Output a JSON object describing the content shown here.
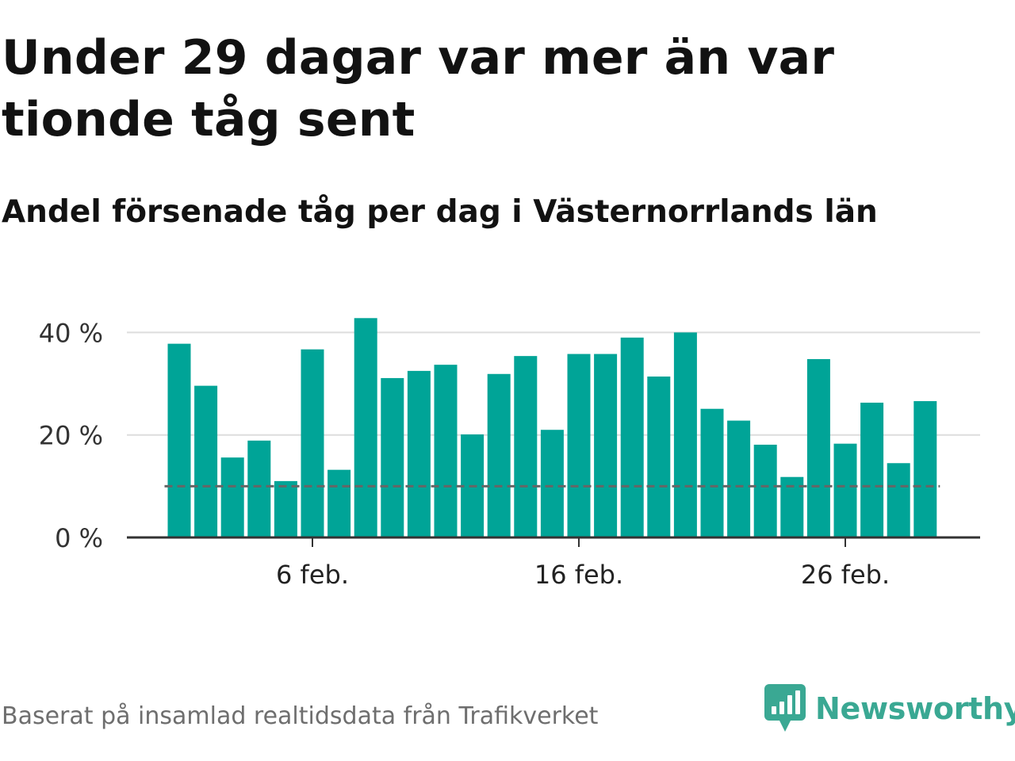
{
  "title": "Under 29 dagar var mer än var tionde tåg sent",
  "subtitle": "Andel försenade tåg per dag i Västernorrlands län",
  "source": "Baserat på insamlad realtidsdata från Trafikverket",
  "brand": {
    "name": "Newsworthy",
    "icon": "newsworthy-logo-icon",
    "color": "#3aa893"
  },
  "colors": {
    "bar": "#00a497",
    "reference_line": "#666666",
    "grid": "#dddddd",
    "axis": "#333333"
  },
  "chart_data": {
    "type": "bar",
    "x": [
      "1 feb.",
      "2 feb.",
      "3 feb.",
      "4 feb.",
      "5 feb.",
      "6 feb.",
      "7 feb.",
      "8 feb.",
      "9 feb.",
      "10 feb.",
      "11 feb.",
      "12 feb.",
      "13 feb.",
      "14 feb.",
      "15 feb.",
      "16 feb.",
      "17 feb.",
      "18 feb.",
      "19 feb.",
      "20 feb.",
      "21 feb.",
      "22 feb.",
      "23 feb.",
      "24 feb.",
      "25 feb.",
      "26 feb.",
      "27 feb.",
      "28 feb.",
      "29 feb."
    ],
    "values": [
      37.8,
      29.6,
      15.6,
      18.9,
      11.0,
      36.7,
      13.2,
      42.8,
      31.1,
      32.5,
      33.7,
      20.1,
      31.9,
      35.4,
      21.0,
      35.8,
      35.8,
      39.0,
      31.4,
      40.0,
      25.1,
      22.8,
      18.1,
      11.8,
      34.8,
      18.3,
      26.3,
      14.5,
      26.6
    ],
    "reference_line": 10,
    "ylim": [
      0,
      43
    ],
    "yticks": [
      0,
      20,
      40
    ],
    "ytick_labels": [
      "0 %",
      "20 %",
      "40 %"
    ],
    "xtick_labels": [
      "6 feb.",
      "16 feb.",
      "26 feb."
    ],
    "xtick_days": [
      6,
      16,
      26
    ],
    "grid": true,
    "legend": false
  }
}
